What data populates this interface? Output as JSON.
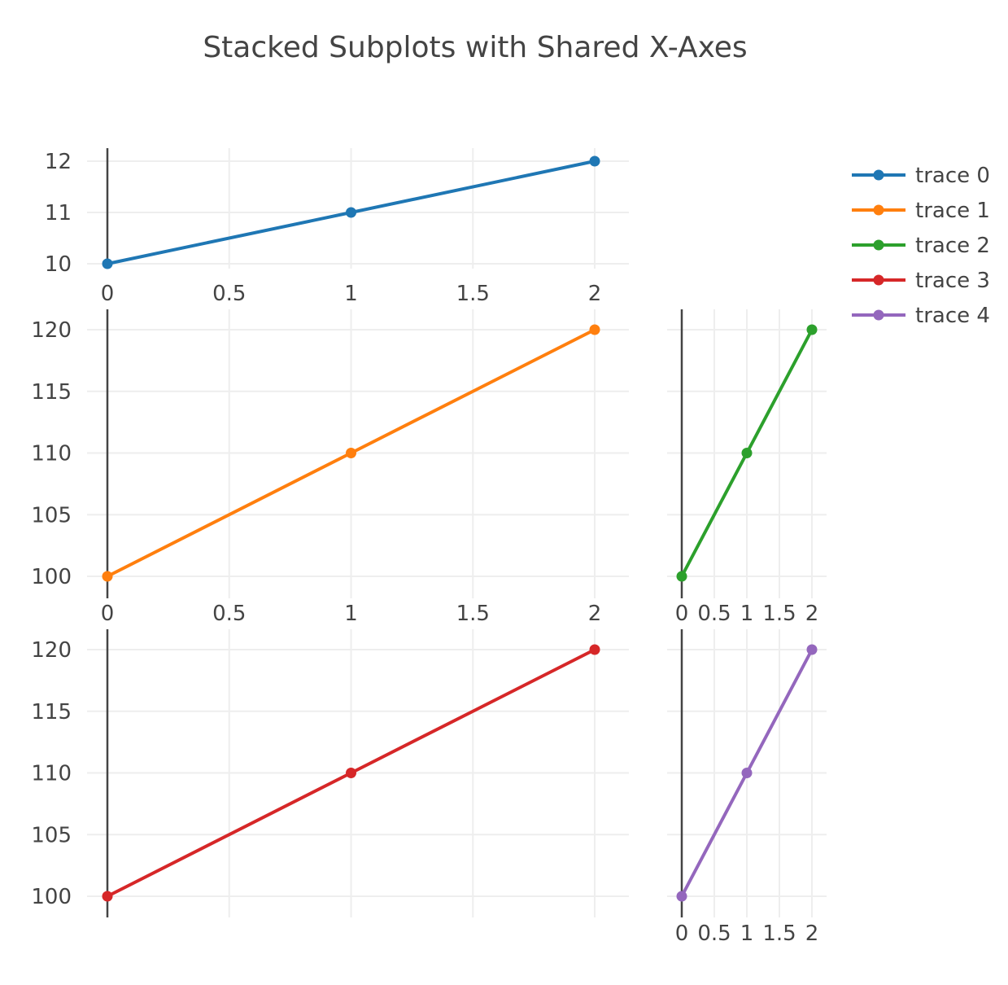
{
  "chart_data": {
    "type": "line",
    "title": "Stacked Subplots with Shared X-Axes",
    "grid": true,
    "legend_position": "top-right",
    "series": [
      {
        "name": "trace 0",
        "color": "#1f77b4",
        "x": [
          0,
          1,
          2
        ],
        "y": [
          10,
          11,
          12
        ]
      },
      {
        "name": "trace 1",
        "color": "#ff7f0e",
        "x": [
          0,
          1,
          2
        ],
        "y": [
          100,
          110,
          120
        ]
      },
      {
        "name": "trace 2",
        "color": "#2ca02c",
        "x": [
          0,
          1,
          2
        ],
        "y": [
          100,
          110,
          120
        ]
      },
      {
        "name": "trace 3",
        "color": "#d62728",
        "x": [
          0,
          1,
          2
        ],
        "y": [
          100,
          110,
          120
        ]
      },
      {
        "name": "trace 4",
        "color": "#9467bd",
        "x": [
          0,
          1,
          2
        ],
        "y": [
          100,
          110,
          120
        ]
      }
    ],
    "subplots": [
      {
        "series": "trace 0",
        "xlim": [
          0,
          2
        ],
        "ylim": [
          10,
          12
        ],
        "xticks": [
          "0",
          "0.5",
          "1",
          "1.5",
          "2"
        ],
        "yticks": [
          "10",
          "11",
          "12"
        ]
      },
      {
        "series": "trace 1",
        "xlim": [
          0,
          2
        ],
        "ylim": [
          100,
          120
        ],
        "xticks": [
          "0",
          "0.5",
          "1",
          "1.5",
          "2"
        ],
        "yticks": [
          "100",
          "105",
          "110",
          "115",
          "120"
        ]
      },
      {
        "series": "trace 2",
        "xlim": [
          0,
          2
        ],
        "ylim": [
          100,
          120
        ],
        "xticks": [
          "0",
          "0.5",
          "1",
          "1.5",
          "2"
        ],
        "yticks": []
      },
      {
        "series": "trace 3",
        "xlim": [
          0,
          2
        ],
        "ylim": [
          100,
          120
        ],
        "xticks": [],
        "yticks": [
          "100",
          "105",
          "110",
          "115",
          "120"
        ]
      },
      {
        "series": "trace 4",
        "xlim": [
          0,
          2
        ],
        "ylim": [
          100,
          120
        ],
        "xticks": [
          "0",
          "0.5",
          "1",
          "1.5",
          "2"
        ],
        "yticks": []
      }
    ]
  }
}
